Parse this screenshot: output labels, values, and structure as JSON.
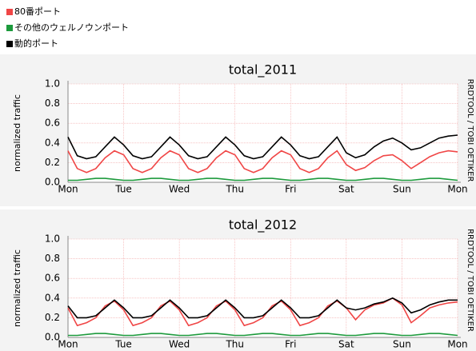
{
  "chart_data": [
    {
      "type": "line",
      "title": "total_2011",
      "y_label": "normalized traffic",
      "watermark": "RRDTOOL / TOBI OETIKER",
      "x": [
        0,
        4,
        8,
        12,
        16,
        20,
        24,
        28,
        32,
        36,
        40,
        44,
        48,
        52,
        56,
        60,
        64,
        68,
        72,
        76,
        80,
        84,
        88,
        92,
        96,
        100,
        104,
        108,
        112,
        116,
        120,
        124,
        128,
        132,
        136,
        140,
        144,
        148,
        152,
        156,
        160,
        164,
        168
      ],
      "xlim": [
        0,
        168
      ],
      "xticks": [
        {
          "value": 0,
          "label": "Mon"
        },
        {
          "value": 24,
          "label": "Tue"
        },
        {
          "value": 48,
          "label": "Wed"
        },
        {
          "value": 72,
          "label": "Thu"
        },
        {
          "value": 96,
          "label": "Fri"
        },
        {
          "value": 120,
          "label": "Sat"
        },
        {
          "value": 144,
          "label": "Sun"
        },
        {
          "value": 168,
          "label": "Mon"
        }
      ],
      "ylim": [
        0,
        1
      ],
      "yticks": [
        {
          "value": 0,
          "label": "0.0"
        },
        0.2,
        0.4,
        0.6,
        0.8,
        {
          "value": 1,
          "label": "1.0"
        }
      ],
      "grid": true,
      "series": [
        {
          "name": "80番ポート",
          "color": "#f04646",
          "values": [
            0.32,
            0.14,
            0.1,
            0.14,
            0.25,
            0.32,
            0.28,
            0.14,
            0.1,
            0.14,
            0.25,
            0.32,
            0.28,
            0.14,
            0.1,
            0.14,
            0.25,
            0.32,
            0.28,
            0.14,
            0.1,
            0.14,
            0.25,
            0.32,
            0.28,
            0.14,
            0.1,
            0.14,
            0.25,
            0.32,
            0.18,
            0.12,
            0.15,
            0.22,
            0.27,
            0.28,
            0.22,
            0.14,
            0.2,
            0.26,
            0.3,
            0.32,
            0.31
          ]
        },
        {
          "name": "その他のウェルノウンポート",
          "color": "#1c9a3c",
          "values": [
            0.02,
            0.02,
            0.03,
            0.04,
            0.04,
            0.03,
            0.02,
            0.02,
            0.03,
            0.04,
            0.04,
            0.03,
            0.02,
            0.02,
            0.03,
            0.04,
            0.04,
            0.03,
            0.02,
            0.02,
            0.03,
            0.04,
            0.04,
            0.03,
            0.02,
            0.02,
            0.03,
            0.04,
            0.04,
            0.03,
            0.02,
            0.02,
            0.03,
            0.04,
            0.04,
            0.03,
            0.02,
            0.02,
            0.03,
            0.04,
            0.04,
            0.03,
            0.02
          ]
        },
        {
          "name": "動的ポート",
          "color": "#000000",
          "values": [
            0.46,
            0.27,
            0.24,
            0.26,
            0.36,
            0.46,
            0.38,
            0.27,
            0.24,
            0.26,
            0.36,
            0.46,
            0.38,
            0.27,
            0.24,
            0.26,
            0.36,
            0.46,
            0.38,
            0.27,
            0.24,
            0.26,
            0.36,
            0.46,
            0.38,
            0.27,
            0.24,
            0.26,
            0.36,
            0.46,
            0.3,
            0.25,
            0.28,
            0.36,
            0.42,
            0.45,
            0.4,
            0.33,
            0.35,
            0.4,
            0.45,
            0.47,
            0.48
          ]
        }
      ]
    },
    {
      "type": "line",
      "title": "total_2012",
      "y_label": "normalized traffic",
      "watermark": "RRDTOOL / TOBI OETIKER",
      "x": [
        0,
        4,
        8,
        12,
        16,
        20,
        24,
        28,
        32,
        36,
        40,
        44,
        48,
        52,
        56,
        60,
        64,
        68,
        72,
        76,
        80,
        84,
        88,
        92,
        96,
        100,
        104,
        108,
        112,
        116,
        120,
        124,
        128,
        132,
        136,
        140,
        144,
        148,
        152,
        156,
        160,
        164,
        168
      ],
      "xlim": [
        0,
        168
      ],
      "xticks": [
        {
          "value": 0,
          "label": "Mon"
        },
        {
          "value": 24,
          "label": "Tue"
        },
        {
          "value": 48,
          "label": "Wed"
        },
        {
          "value": 72,
          "label": "Thu"
        },
        {
          "value": 96,
          "label": "Fri"
        },
        {
          "value": 120,
          "label": "Sat"
        },
        {
          "value": 144,
          "label": "Sun"
        },
        {
          "value": 168,
          "label": "Mon"
        }
      ],
      "ylim": [
        0,
        1
      ],
      "yticks": [
        {
          "value": 0,
          "label": "0.0"
        },
        0.2,
        0.4,
        0.6,
        0.8,
        {
          "value": 1,
          "label": "1.0"
        }
      ],
      "grid": true,
      "series": [
        {
          "name": "80番ポート",
          "color": "#f04646",
          "values": [
            0.3,
            0.12,
            0.15,
            0.2,
            0.32,
            0.37,
            0.28,
            0.12,
            0.15,
            0.2,
            0.32,
            0.37,
            0.28,
            0.12,
            0.15,
            0.2,
            0.32,
            0.37,
            0.28,
            0.12,
            0.15,
            0.2,
            0.32,
            0.37,
            0.28,
            0.12,
            0.15,
            0.2,
            0.32,
            0.37,
            0.3,
            0.18,
            0.28,
            0.33,
            0.35,
            0.4,
            0.33,
            0.15,
            0.22,
            0.3,
            0.33,
            0.35,
            0.36
          ]
        },
        {
          "name": "その他のウェルノウンポート",
          "color": "#1c9a3c",
          "values": [
            0.02,
            0.02,
            0.03,
            0.04,
            0.04,
            0.03,
            0.02,
            0.02,
            0.03,
            0.04,
            0.04,
            0.03,
            0.02,
            0.02,
            0.03,
            0.04,
            0.04,
            0.03,
            0.02,
            0.02,
            0.03,
            0.04,
            0.04,
            0.03,
            0.02,
            0.02,
            0.03,
            0.04,
            0.04,
            0.03,
            0.02,
            0.02,
            0.03,
            0.04,
            0.04,
            0.03,
            0.02,
            0.02,
            0.03,
            0.04,
            0.04,
            0.03,
            0.02
          ]
        },
        {
          "name": "動的ポート",
          "color": "#000000",
          "values": [
            0.32,
            0.2,
            0.2,
            0.22,
            0.3,
            0.38,
            0.3,
            0.2,
            0.2,
            0.22,
            0.3,
            0.38,
            0.3,
            0.2,
            0.2,
            0.22,
            0.3,
            0.38,
            0.3,
            0.2,
            0.2,
            0.22,
            0.3,
            0.38,
            0.3,
            0.2,
            0.2,
            0.22,
            0.3,
            0.38,
            0.3,
            0.28,
            0.3,
            0.34,
            0.36,
            0.4,
            0.35,
            0.25,
            0.28,
            0.33,
            0.36,
            0.38,
            0.38
          ]
        }
      ]
    }
  ]
}
